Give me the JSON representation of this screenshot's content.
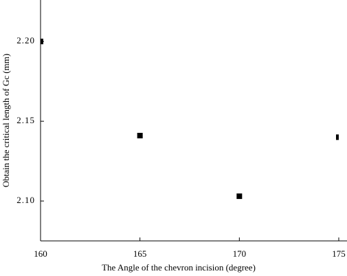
{
  "chart_data": {
    "type": "scatter",
    "x_label": "The Angle of the chevron incision (degree)",
    "y_label": "Obtain the critical length of Gc (mm)",
    "series": [
      {
        "color": "#000000",
        "x": [
          160,
          165,
          170,
          175
        ],
        "values": [
          2.2,
          2.141,
          2.103,
          2.14
        ]
      }
    ],
    "xlim": [
      160,
      175
    ],
    "xticks": [
      160,
      165,
      170,
      175
    ],
    "ylim": [
      2.075,
      2.226
    ],
    "yticks": [
      {
        "value": 2.1,
        "label": "2.10"
      },
      {
        "value": 2.15,
        "label": "2.15"
      },
      {
        "value": 2.2,
        "label": "2.20"
      }
    ]
  }
}
